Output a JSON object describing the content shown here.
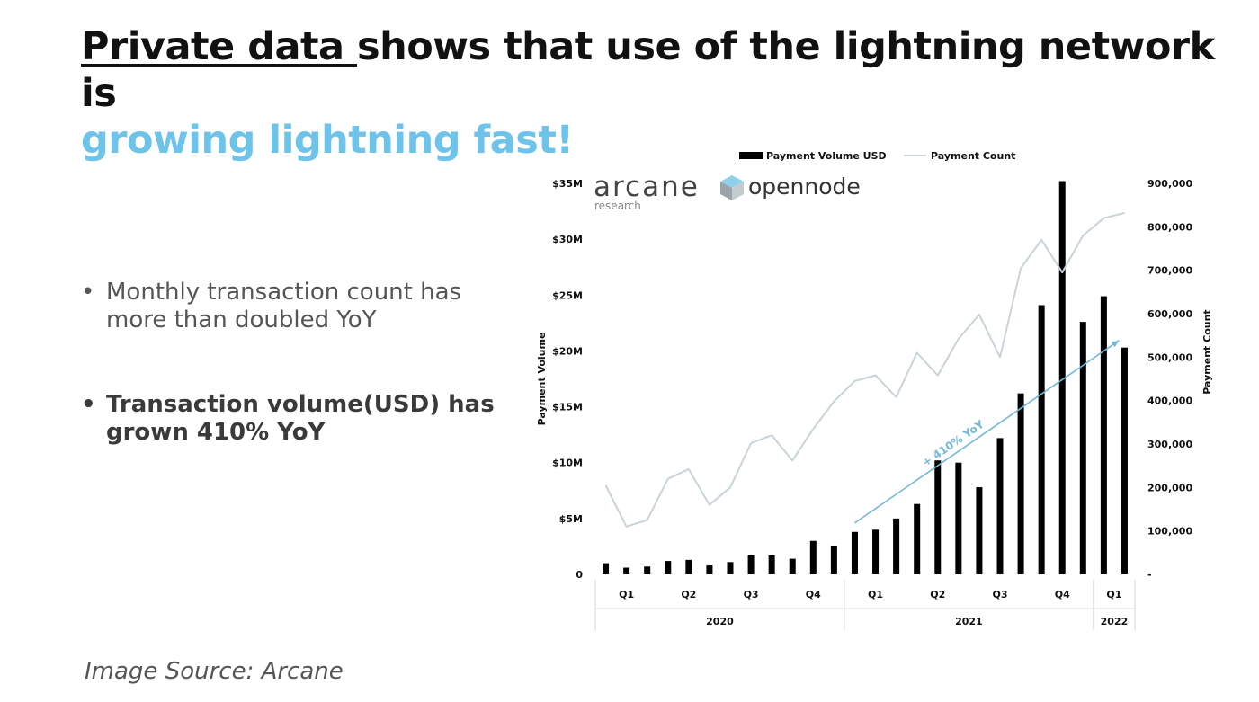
{
  "headline": {
    "link_text": "Private data ",
    "text": "shows that use of the lightning network is",
    "accent": "growing lightning fast!"
  },
  "bullets": [
    {
      "symbol": "•",
      "text": "Monthly transaction count has more than doubled YoY"
    },
    {
      "symbol": "•",
      "text": "Transaction volume(USD) has grown 410% YoY"
    }
  ],
  "logos": {
    "arcane": "arcane",
    "arcane_sub": "research",
    "opennode": "opennode"
  },
  "source": "Image Source: Arcane",
  "colors": {
    "accent": "#6ec3ea",
    "bar": "#000000",
    "line": "#c9d3d8",
    "arrow": "#74b8d8"
  },
  "chart_data": {
    "type": "bar",
    "legend": {
      "position": "top",
      "entries": [
        "Payment Volume USD",
        "Payment Count"
      ]
    },
    "ylabel": "Payment Volume",
    "y2label": "Payment Count",
    "ylim": [
      0,
      35
    ],
    "y_ticks": [
      0,
      5,
      10,
      15,
      20,
      25,
      30,
      35
    ],
    "y_tick_labels": [
      "0",
      "$5M",
      "$10M",
      "$15M",
      "$20M",
      "$25M",
      "$30M",
      "$35M"
    ],
    "y2lim": [
      0,
      900000
    ],
    "y2_ticks": [
      0,
      100000,
      200000,
      300000,
      400000,
      500000,
      600000,
      700000,
      800000,
      900000
    ],
    "y2_tick_labels": [
      "-",
      "100,000",
      "200,000",
      "300,000",
      "400,000",
      "500,000",
      "600,000",
      "700,000",
      "800,000",
      "900,000"
    ],
    "quarters": [
      {
        "label": "Q1",
        "year": "2020"
      },
      {
        "label": "Q2",
        "year": "2020"
      },
      {
        "label": "Q3",
        "year": "2020"
      },
      {
        "label": "Q4",
        "year": "2020"
      },
      {
        "label": "Q1",
        "year": "2021"
      },
      {
        "label": "Q2",
        "year": "2021"
      },
      {
        "label": "Q3",
        "year": "2021"
      },
      {
        "label": "Q4",
        "year": "2021"
      },
      {
        "label": "Q1",
        "year": "2022"
      }
    ],
    "years": [
      "2020",
      "2021",
      "2022"
    ],
    "series": [
      {
        "name": "Payment Volume USD",
        "kind": "bar",
        "axis": "left",
        "values": [
          1.0,
          0.6,
          0.7,
          1.2,
          1.3,
          0.8,
          1.1,
          1.7,
          1.7,
          1.4,
          3.0,
          2.5,
          3.8,
          4.0,
          5.0,
          6.3,
          10.2,
          10.0,
          7.8,
          12.2,
          16.2,
          24.1,
          35.2,
          22.6,
          24.9,
          20.3
        ]
      },
      {
        "name": "Payment Count",
        "kind": "line",
        "axis": "right",
        "values": [
          205000,
          110000,
          125000,
          220000,
          242000,
          160000,
          200000,
          302000,
          320000,
          262000,
          335000,
          398000,
          445000,
          458000,
          408000,
          510000,
          458000,
          542000,
          598000,
          500000,
          705000,
          770000,
          695000,
          780000,
          820000,
          832000
        ]
      }
    ],
    "annotation": {
      "text": "+ 410% YoY",
      "from_month": 12,
      "to_month": 25
    }
  }
}
